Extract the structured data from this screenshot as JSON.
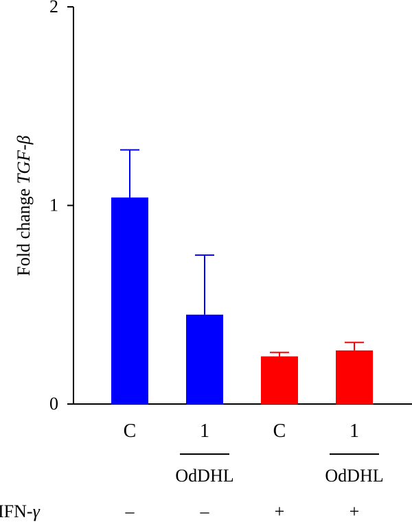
{
  "chart_data": {
    "type": "bar",
    "ylabel_prefix": "Fold change ",
    "ylabel_gene": "TGF-β",
    "ylim": [
      0,
      2
    ],
    "yticks": [
      "0",
      "1",
      "2"
    ],
    "grid": false,
    "bars": [
      {
        "category": "C",
        "value": 1.04,
        "error": 0.24,
        "color": "#0000ff"
      },
      {
        "category": "1",
        "value": 0.45,
        "error": 0.3,
        "color": "#0000ff"
      },
      {
        "category": "C",
        "value": 0.24,
        "error": 0.02,
        "color": "#ff0000"
      },
      {
        "category": "1",
        "value": 0.27,
        "error": 0.04,
        "color": "#ff0000"
      }
    ],
    "group_labels": [
      "OdDHL",
      "OdDHL"
    ],
    "treatment_row": {
      "label_prefix": "IFN-",
      "label_symbol": "γ",
      "values": [
        "–",
        "–",
        "+",
        "+"
      ]
    }
  }
}
